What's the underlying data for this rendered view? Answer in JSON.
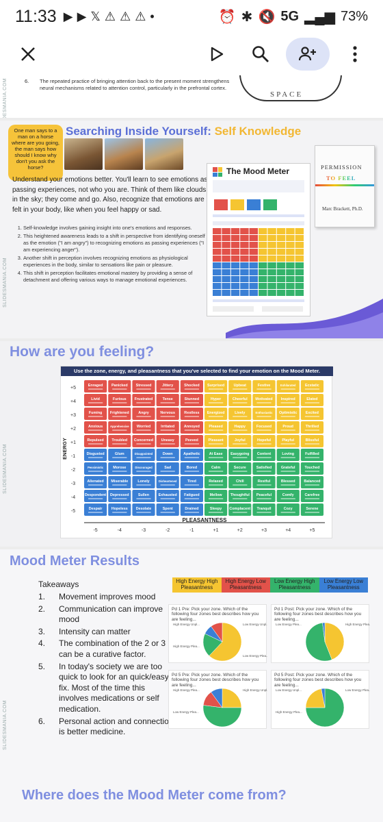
{
  "status_bar": {
    "time": "11:33",
    "network": "5G",
    "battery": "73%"
  },
  "slide1": {
    "number": "6.",
    "text": "The repeated practice of bringing attention back to the present moment strengthens neural mechanisms related to attention control, particularly in the prefrontal cortex.",
    "image_label": "SPACE",
    "side_label": "SLIDESMANIA.COM"
  },
  "slide2": {
    "title_part1": "Searching Inside Yourself:",
    "title_part2": " Self Knowledge",
    "bubble": "One man says to a man on a horse where are you going, the man says how should I know why don't you ask the horse?",
    "intro": "Understand your emotions better. You'll learn to see emotions as passing experiences, not who you are. Think of them like clouds in the sky; they come and go. Also, recognize that emotions are felt in your body, like when you feel happy or sad.",
    "points": [
      "Self-knowledge involves gaining insight into one's emotions and responses.",
      "This heightened awareness leads to a shift in perspective from identifying oneself as the emotion (\"I am angry\") to recognizing emotions as passing experiences (\"I am experiencing anger\").",
      "Another shift in perception involves recognizing emotions as physiological experiences in the body, similar to sensations like pain or pleasure.",
      "This shift in perception facilitates emotional mastery by providing a sense of detachment and offering various ways to manage emotional experiences."
    ],
    "doc_title": "The Mood Meter",
    "book": {
      "t1": "PERMISSION",
      "t2": "TO FEEL",
      "author": "Marc Brackett, Ph.D."
    }
  },
  "slide3": {
    "heading": "How are you feeling?",
    "instruction": "Use the zone, energy, and pleasantness that you've selected to find your emotion on the Mood Meter.",
    "energy_label": "ENERGY",
    "pleasantness_label": "PLEASANTNESS",
    "energy_ticks": [
      "+5",
      "+4",
      "+3",
      "+2",
      "+1",
      "-1",
      "-2",
      "-3",
      "-4",
      "-5"
    ],
    "pleasant_ticks": [
      "-5",
      "-4",
      "-3",
      "-2",
      "-1",
      "+1",
      "+2",
      "+3",
      "+4",
      "+5"
    ],
    "rows": [
      [
        "Enraged",
        "Panicked",
        "Stressed",
        "Jittery",
        "Shocked",
        "Surprised",
        "Upbeat",
        "Festive",
        "Exhilarated",
        "Ecstatic"
      ],
      [
        "Livid",
        "Furious",
        "Frustrated",
        "Tense",
        "Stunned",
        "Hyper",
        "Cheerful",
        "Motivated",
        "Inspired",
        "Elated"
      ],
      [
        "Fuming",
        "Frightened",
        "Angry",
        "Nervous",
        "Restless",
        "Energized",
        "Lively",
        "Enthusiastic",
        "Optimistic",
        "Excited"
      ],
      [
        "Anxious",
        "Apprehensive",
        "Worried",
        "Irritated",
        "Annoyed",
        "Pleased",
        "Happy",
        "Focused",
        "Proud",
        "Thrilled"
      ],
      [
        "Repulsed",
        "Troubled",
        "Concerned",
        "Uneasy",
        "Peeved",
        "Pleasant",
        "Joyful",
        "Hopeful",
        "Playful",
        "Blissful"
      ],
      [
        "Disgusted",
        "Glum",
        "Disappointed",
        "Down",
        "Apathetic",
        "At Ease",
        "Easygoing",
        "Content",
        "Loving",
        "Fulfilled"
      ],
      [
        "Pessimistic",
        "Morose",
        "Discouraged",
        "Sad",
        "Bored",
        "Calm",
        "Secure",
        "Satisfied",
        "Grateful",
        "Touched"
      ],
      [
        "Alienated",
        "Miserable",
        "Lonely",
        "Disheartened",
        "Tired",
        "Relaxed",
        "Chill",
        "Restful",
        "Blessed",
        "Balanced"
      ],
      [
        "Despondent",
        "Depressed",
        "Sullen",
        "Exhausted",
        "Fatigued",
        "Mellow",
        "Thoughtful",
        "Peaceful",
        "Comfy",
        "Carefree"
      ],
      [
        "Despair",
        "Hopeless",
        "Desolate",
        "Spent",
        "Drained",
        "Sleepy",
        "Complacent",
        "Tranquil",
        "Cozy",
        "Serene"
      ]
    ],
    "colors": {
      "red": "#e2524a",
      "yellow": "#f5c531",
      "blue": "#3a7fd5",
      "green": "#34b36b"
    }
  },
  "slide4": {
    "heading": "Mood Meter Results",
    "takeaways_heading": "Takeaways",
    "takeaways": [
      {
        "n": "1.",
        "t": "Movement improves mood"
      },
      {
        "n": "2.",
        "t": "Communication can improve mood"
      },
      {
        "n": "3.",
        "t": "Intensity can matter"
      },
      {
        "n": "4.",
        "t": "The combination of the 2 or 3 can be a curative factor."
      },
      {
        "n": "5.",
        "t": "In today's society we are too quick to look for an quick/easy fix. Most of the time this involves medications or self medication."
      },
      {
        "n": "6.",
        "t": "Personal action and connection is better medicine."
      }
    ],
    "legend": [
      {
        "label": "High Energy High Pleasantness",
        "color": "#f5c531"
      },
      {
        "label": "High Energy Low Pleasantness",
        "color": "#e2524a"
      },
      {
        "label": "Low Energy High Pleasantness",
        "color": "#34b36b"
      },
      {
        "label": "Low Energy Low Pleasantness",
        "color": "#3a7fd5"
      }
    ],
    "pies": [
      {
        "q": "Pd 1 Pre: Pick your zone. Which of the following four zones best describes how you are feeling...",
        "slices": [
          {
            "zone": "yellow",
            "value": 62
          },
          {
            "zone": "green",
            "value": 20
          },
          {
            "zone": "blue",
            "value": 8
          },
          {
            "zone": "red",
            "value": 10
          }
        ],
        "labels": [
          "High Energy Unpl...",
          "Low Energy Unpl...",
          "High Energy Plea...",
          "Low Energy Plea..."
        ]
      },
      {
        "q": "Pd 1 Post: Pick your zone. Which of the following four zones best describes how you are feeling...",
        "slices": [
          {
            "zone": "yellow",
            "value": 44
          },
          {
            "zone": "green",
            "value": 54
          },
          {
            "zone": "blue",
            "value": 2
          }
        ],
        "labels": [
          "Low Energy Plea...",
          "High Energy Plea..."
        ]
      },
      {
        "q": "Pd 5 Pre: Pick your zone. Which of the following four zones best describes how you are feeling...",
        "slices": [
          {
            "zone": "yellow",
            "value": 25
          },
          {
            "zone": "green",
            "value": 52
          },
          {
            "zone": "red",
            "value": 13
          },
          {
            "zone": "blue",
            "value": 10
          }
        ],
        "labels": [
          "High Energy Plea...",
          "High Energy Unpl...",
          "Low Energy Plea..."
        ]
      },
      {
        "q": "Pd 5 Post: Pick your zone. Which of the following four zones best describes how you are feeling...",
        "slices": [
          {
            "zone": "green",
            "value": 75
          },
          {
            "zone": "yellow",
            "value": 22
          },
          {
            "zone": "blue",
            "value": 3
          }
        ],
        "labels": [
          "Low Energy Unpl...",
          "Low Energy Plea...",
          "High Energy Plea..."
        ]
      }
    ],
    "next_heading": "Where does the Mood Meter come from?"
  }
}
